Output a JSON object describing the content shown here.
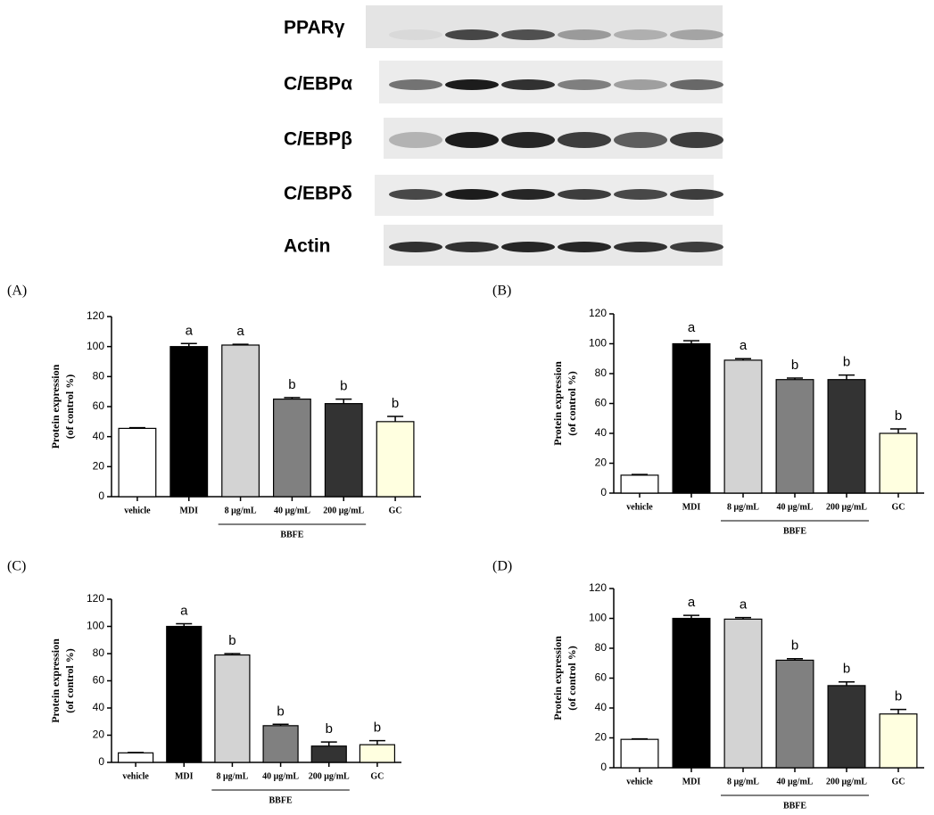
{
  "blot": {
    "labels": [
      "PPARγ",
      "C/EBPα",
      "C/EBPβ",
      "C/EBPδ",
      "Actin"
    ]
  },
  "chart_data": [
    {
      "type": "bar",
      "panel": "(A)",
      "ylabel": [
        "Protein  expression",
        "(of  control %)"
      ],
      "categories": [
        "vehicle",
        "MDI",
        "8 μg/mL",
        "40 μg/mL",
        "200 μg/mL",
        "GC"
      ],
      "values": [
        45.5,
        100,
        101,
        65,
        62,
        50
      ],
      "errors": [
        0.5,
        2,
        0.5,
        1,
        3,
        3.5
      ],
      "letters": [
        null,
        "a",
        "a",
        "b",
        "b",
        "b"
      ],
      "colors": [
        "#ffffff",
        "#000000",
        "#d3d3d3",
        "#808080",
        "#333333",
        "#ffffe0"
      ],
      "group": {
        "label": "BBFE",
        "categories": [
          2,
          3,
          4
        ]
      },
      "ylim": [
        0,
        120
      ],
      "yticks": [
        0,
        20,
        40,
        60,
        80,
        100,
        120
      ]
    },
    {
      "type": "bar",
      "panel": "(B)",
      "ylabel": [
        "Protein  expression",
        "(of  control %)"
      ],
      "categories": [
        "vehicle",
        "MDI",
        "8 μg/mL",
        "40 μg/mL",
        "200 μg/mL",
        "GC"
      ],
      "values": [
        12,
        100,
        89,
        76,
        76,
        40
      ],
      "errors": [
        0.5,
        2,
        1,
        1,
        3,
        3
      ],
      "letters": [
        null,
        "a",
        "a",
        "b",
        "b",
        "b"
      ],
      "colors": [
        "#ffffff",
        "#000000",
        "#d3d3d3",
        "#808080",
        "#333333",
        "#ffffe0"
      ],
      "group": {
        "label": "BBFE",
        "categories": [
          2,
          3,
          4
        ]
      },
      "ylim": [
        0,
        120
      ],
      "yticks": [
        0,
        20,
        40,
        60,
        80,
        100,
        120
      ]
    },
    {
      "type": "bar",
      "panel": "(C)",
      "ylabel": [
        "Protein expression",
        "(of  control %)"
      ],
      "categories": [
        "vehicle",
        "MDI",
        "8 μg/mL",
        "40 μg/mL",
        "200 μg/mL",
        "GC"
      ],
      "values": [
        7,
        100,
        79,
        27,
        12,
        13
      ],
      "errors": [
        0.3,
        2,
        1,
        1,
        3,
        3
      ],
      "letters": [
        null,
        "a",
        "b",
        "b",
        "b",
        "b"
      ],
      "colors": [
        "#ffffff",
        "#000000",
        "#d3d3d3",
        "#808080",
        "#333333",
        "#ffffe0"
      ],
      "group": {
        "label": "BBFE",
        "categories": [
          2,
          3,
          4
        ]
      },
      "ylim": [
        0,
        120
      ],
      "yticks": [
        0,
        20,
        40,
        60,
        80,
        100,
        120
      ]
    },
    {
      "type": "bar",
      "panel": "(D)",
      "ylabel": [
        "Protein  expression",
        "(of  control %)"
      ],
      "categories": [
        "vehicle",
        "MDI",
        "8 μg/mL",
        "40 μg/mL",
        "200 μg/mL",
        "GC"
      ],
      "values": [
        19,
        100,
        99.5,
        72,
        55,
        36
      ],
      "errors": [
        0.3,
        2,
        1,
        1,
        2.5,
        3
      ],
      "letters": [
        null,
        "a",
        "a",
        "b",
        "b",
        "b"
      ],
      "colors": [
        "#ffffff",
        "#000000",
        "#d3d3d3",
        "#808080",
        "#333333",
        "#ffffe0"
      ],
      "group": {
        "label": "BBFE",
        "categories": [
          2,
          3,
          4
        ]
      },
      "ylim": [
        0,
        120
      ],
      "yticks": [
        0,
        20,
        40,
        60,
        80,
        100,
        120
      ]
    }
  ]
}
